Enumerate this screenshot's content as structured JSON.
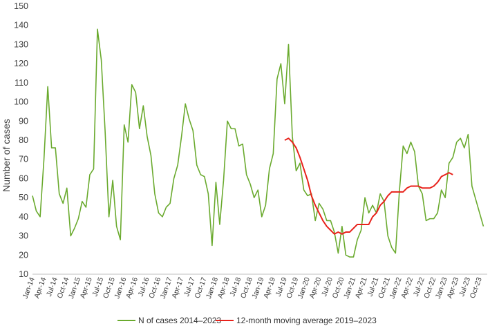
{
  "chart_data": {
    "type": "line",
    "title": "",
    "xlabel": "",
    "ylabel": "Number of cases",
    "ylim": [
      10,
      150
    ],
    "yticks": [
      10,
      20,
      30,
      40,
      50,
      60,
      70,
      80,
      90,
      100,
      110,
      120,
      130,
      140,
      150
    ],
    "grid": false,
    "legend_position": "bottom",
    "x_start": "2014-01",
    "x_tick_labels": [
      "Jan-14",
      "Apr-14",
      "Jul-14",
      "Oct-14",
      "Jan-15",
      "Apr-15",
      "Jul-15",
      "Oct-15",
      "Jan-16",
      "Apr-16",
      "Jul-16",
      "Oct-16",
      "Jan-17",
      "Apr-17",
      "Jul-17",
      "Oct-17",
      "Jan-18",
      "Apr-18",
      "Jul-18",
      "Oct-18",
      "Jan-19",
      "Apr-19",
      "Jul-19",
      "Oct-19",
      "Jan-20",
      "Apr-20",
      "Jul-20",
      "Oct-20",
      "Jan-21",
      "Apr-21",
      "Jul-21",
      "Oct-21",
      "Jan-22",
      "Apr-22",
      "Jul-22",
      "Oct-22",
      "Jan-23",
      "Apr-23",
      "Jul-23",
      "Oct-23"
    ],
    "series": [
      {
        "name": "N of cases 2014–2023",
        "color": "#6aaa2e",
        "values": [
          51,
          43,
          40,
          70,
          108,
          76,
          76,
          52,
          47,
          55,
          30,
          34,
          39,
          48,
          45,
          62,
          65,
          138,
          122,
          85,
          40,
          59,
          35,
          28,
          88,
          79,
          109,
          105,
          86,
          98,
          82,
          72,
          52,
          42,
          40,
          45,
          47,
          60,
          67,
          82,
          99,
          91,
          85,
          67,
          62,
          61,
          52,
          25,
          58,
          36,
          59,
          90,
          86,
          86,
          77,
          78,
          62,
          57,
          50,
          54,
          40,
          46,
          65,
          73,
          112,
          120,
          99,
          130,
          82,
          64,
          68,
          54,
          51,
          52,
          38,
          47,
          44,
          38,
          38,
          32,
          21,
          35,
          20,
          19,
          19,
          28,
          33,
          50,
          42,
          46,
          42,
          52,
          48,
          30,
          24,
          21,
          53,
          77,
          73,
          79,
          74,
          56,
          52,
          38,
          39,
          39,
          42,
          54,
          50,
          68,
          71,
          79,
          81,
          76,
          83,
          56,
          49,
          42,
          35
        ],
        "start_index": 0
      },
      {
        "name": "12-month moving average 2019–2023",
        "color": "#e8221b",
        "start_index": 66,
        "values": [
          80,
          81,
          79,
          76,
          71,
          65,
          59,
          51,
          46,
          42,
          38,
          35,
          33,
          31,
          32,
          31,
          32,
          32,
          34,
          36,
          36,
          36,
          36,
          40,
          42,
          46,
          48,
          51,
          53,
          53,
          53,
          53,
          55,
          56,
          56,
          56,
          55,
          55,
          55,
          56,
          58,
          61,
          62,
          63,
          62
        ]
      }
    ]
  }
}
